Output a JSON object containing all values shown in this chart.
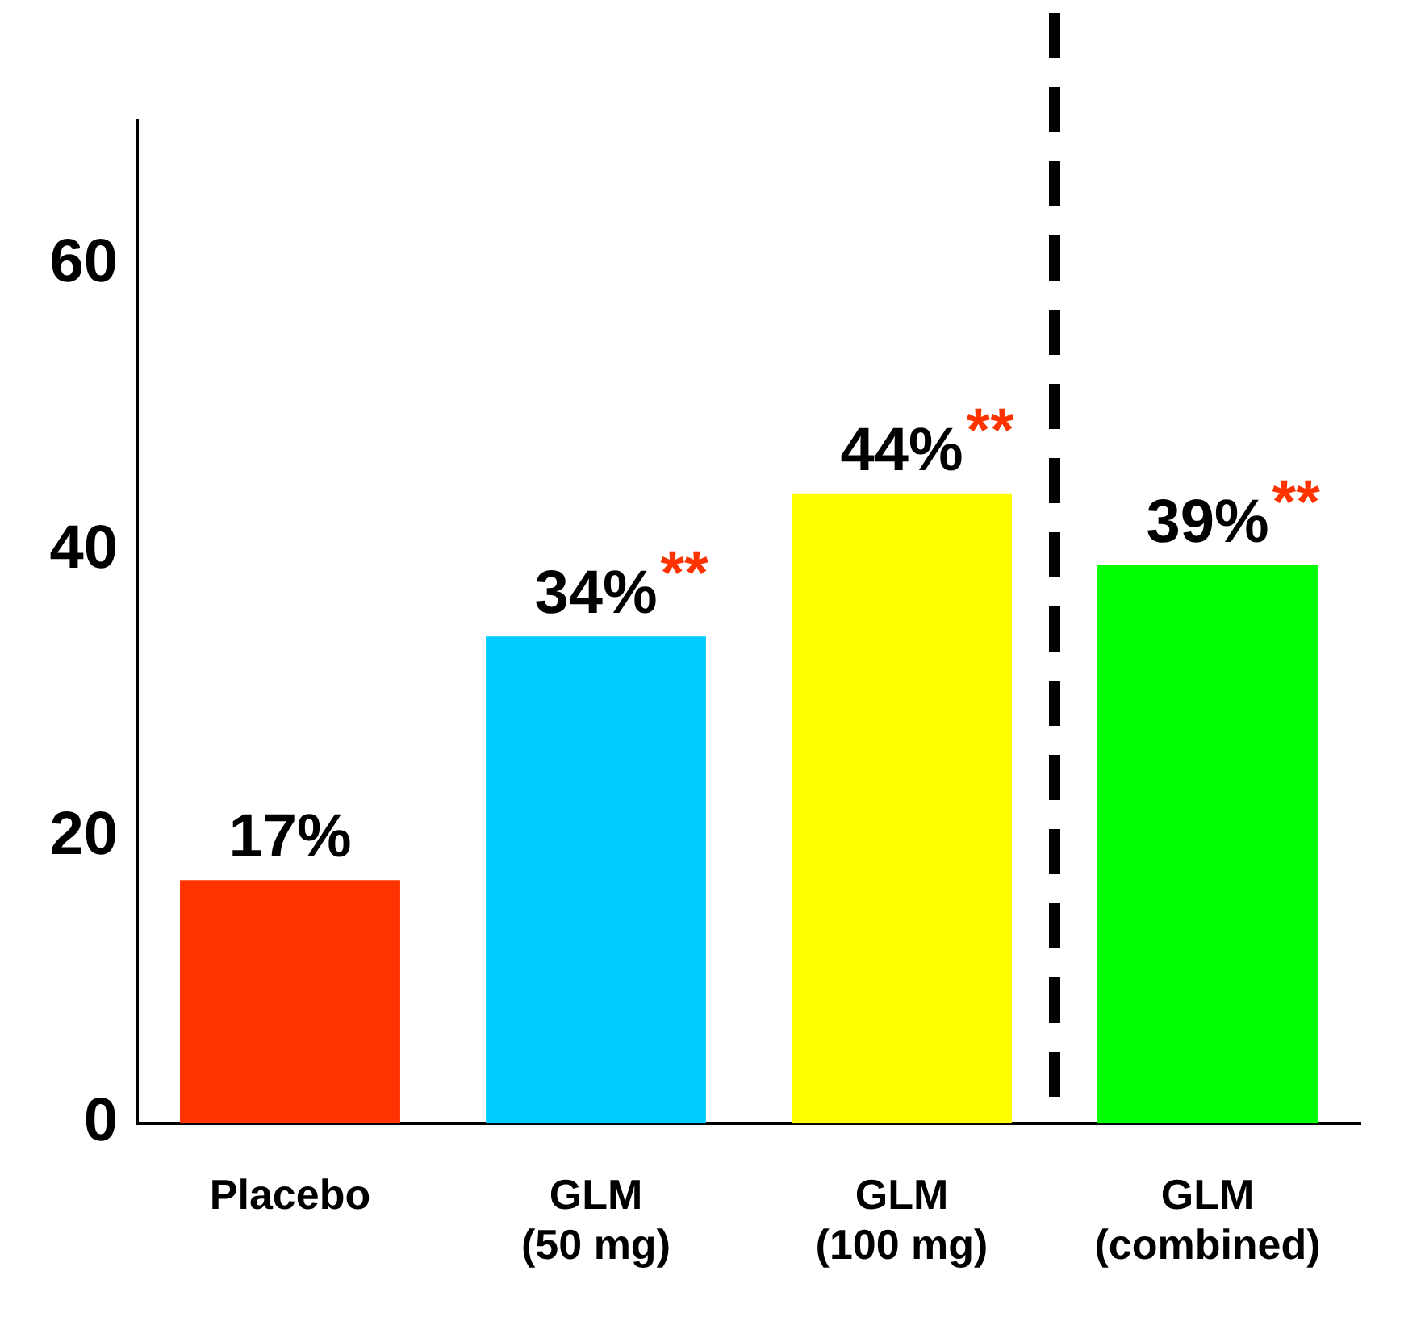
{
  "chart_data": {
    "type": "bar",
    "categories": [
      "Placebo",
      "GLM\n(50 mg)",
      "GLM\n(100 mg)",
      "GLM\n(combined)"
    ],
    "values": [
      17,
      34,
      44,
      39
    ],
    "colors": [
      "#ff3300",
      "#00ccff",
      "#ffff00",
      "#00ff00"
    ],
    "value_labels": [
      "17%",
      "34%",
      "44%",
      "39%"
    ],
    "annotations": [
      {
        "text": "**",
        "x": "GLM\n(50 mg)",
        "y": 34
      },
      {
        "text": "**",
        "x": "GLM\n(100 mg)",
        "y": 44
      },
      {
        "text": "**",
        "x": "GLM\n(combined)",
        "y": 39
      }
    ],
    "ylim": [
      0,
      70
    ],
    "yticks": [
      0,
      20,
      40,
      60
    ],
    "grid": false,
    "legend": false
  }
}
